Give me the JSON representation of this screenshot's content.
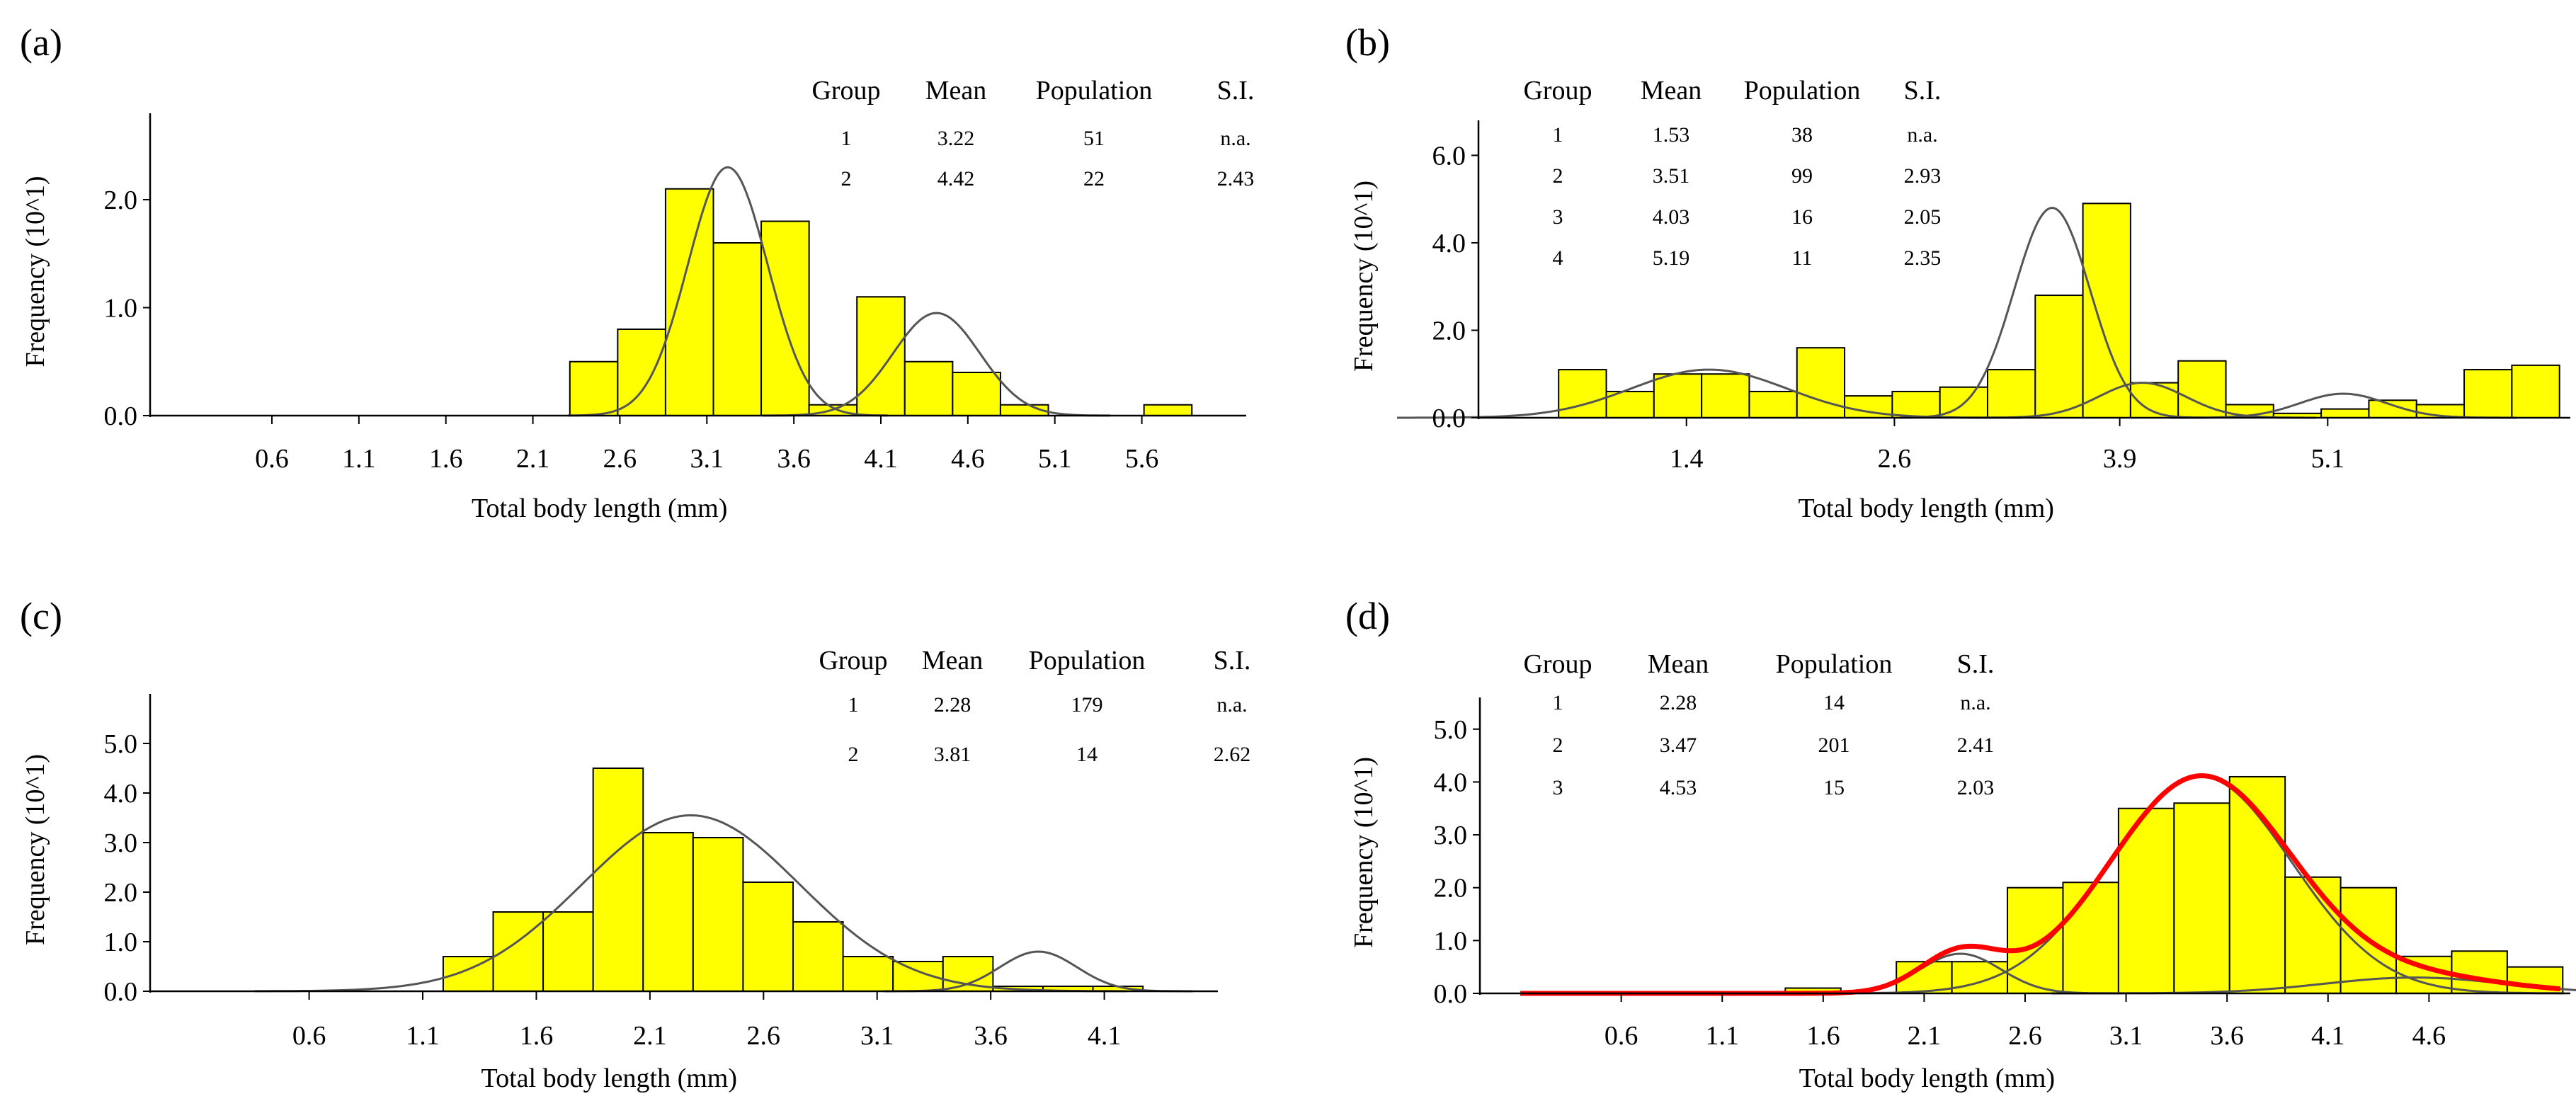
{
  "chart_data": [
    {
      "id": "a",
      "type": "bar",
      "panel_label": "(a)",
      "xlabel": "Total body length (mm)",
      "ylabel": "Frequency (10^1)",
      "xlim": [
        -0.1,
        6.2
      ],
      "ylim": [
        0,
        2.8
      ],
      "xticks": [
        "0.6",
        "1.1",
        "1.6",
        "2.1",
        "2.6",
        "3.1",
        "3.6",
        "4.1",
        "4.6",
        "5.1",
        "5.6"
      ],
      "yticks": [
        "0.0",
        "1.0",
        "2.0"
      ],
      "bin_width": 0.275,
      "bins": [
        {
          "x": 2.45,
          "v": 0.5
        },
        {
          "x": 2.725,
          "v": 0.8
        },
        {
          "x": 3.0,
          "v": 2.1
        },
        {
          "x": 3.275,
          "v": 1.6
        },
        {
          "x": 3.55,
          "v": 1.8
        },
        {
          "x": 3.825,
          "v": 0.1
        },
        {
          "x": 4.1,
          "v": 1.1
        },
        {
          "x": 4.375,
          "v": 0.5
        },
        {
          "x": 4.65,
          "v": 0.4
        },
        {
          "x": 4.925,
          "v": 0.1
        },
        {
          "x": 5.75,
          "v": 0.1
        }
      ],
      "fits": [
        {
          "mean": 3.22,
          "sd": 0.23,
          "peak": 2.3
        },
        {
          "mean": 4.42,
          "sd": 0.25,
          "peak": 0.95
        }
      ],
      "table": {
        "headers": [
          "Group",
          "Mean",
          "Population",
          "S.I."
        ],
        "rows": [
          [
            "1",
            "3.22",
            "51",
            "n.a."
          ],
          [
            "2",
            "4.42",
            "22",
            "2.43"
          ]
        ]
      }
    },
    {
      "id": "b",
      "type": "bar",
      "panel_label": "(b)",
      "xlabel": "Total body length (mm)",
      "ylabel": "Frequency (10^1)",
      "xlim": [
        0.2,
        6.5
      ],
      "ylim": [
        0,
        6.8
      ],
      "xticks": [
        "1.4",
        "2.6",
        "3.9",
        "5.1"
      ],
      "yticks": [
        "0.0",
        "2.0",
        "4.0",
        "6.0"
      ],
      "bin_width": 0.275,
      "bins": [
        {
          "x": 0.8,
          "v": 1.1
        },
        {
          "x": 1.075,
          "v": 0.6
        },
        {
          "x": 1.35,
          "v": 1.0
        },
        {
          "x": 1.625,
          "v": 1.0
        },
        {
          "x": 1.9,
          "v": 0.6
        },
        {
          "x": 2.175,
          "v": 1.6
        },
        {
          "x": 2.45,
          "v": 0.5
        },
        {
          "x": 2.725,
          "v": 0.6
        },
        {
          "x": 3.0,
          "v": 0.7
        },
        {
          "x": 3.275,
          "v": 1.1
        },
        {
          "x": 3.55,
          "v": 2.8
        },
        {
          "x": 3.825,
          "v": 4.9
        },
        {
          "x": 4.1,
          "v": 0.8
        },
        {
          "x": 4.375,
          "v": 1.3
        },
        {
          "x": 4.65,
          "v": 0.3
        },
        {
          "x": 4.925,
          "v": 0.1
        },
        {
          "x": 5.2,
          "v": 0.2
        },
        {
          "x": 5.475,
          "v": 0.4
        },
        {
          "x": 5.75,
          "v": 0.3
        },
        {
          "x": 6.025,
          "v": 1.1
        },
        {
          "x": 6.3,
          "v": 1.2
        }
      ],
      "fits": [
        {
          "mean": 1.53,
          "sd": 0.45,
          "peak": 1.1
        },
        {
          "mean": 3.51,
          "sd": 0.22,
          "peak": 4.8
        },
        {
          "mean": 4.03,
          "sd": 0.25,
          "peak": 0.8
        },
        {
          "mean": 5.19,
          "sd": 0.25,
          "peak": 0.55
        }
      ],
      "table": {
        "headers": [
          "Group",
          "Mean",
          "Population",
          "S.I."
        ],
        "rows": [
          [
            "1",
            "1.53",
            "38",
            "n.a."
          ],
          [
            "2",
            "3.51",
            "99",
            "2.93"
          ],
          [
            "3",
            "4.03",
            "16",
            "2.05"
          ],
          [
            "4",
            "5.19",
            "11",
            "2.35"
          ]
        ]
      }
    },
    {
      "id": "c",
      "type": "bar",
      "panel_label": "(c)",
      "xlabel": "Total body length (mm)",
      "ylabel": "Frequency (10^1)",
      "xlim": [
        -0.1,
        4.6
      ],
      "ylim": [
        0,
        6.0
      ],
      "xticks": [
        "0.6",
        "1.1",
        "1.6",
        "2.1",
        "2.6",
        "3.1",
        "3.6",
        "4.1"
      ],
      "yticks": [
        "0.0",
        "1.0",
        "2.0",
        "3.0",
        "4.0",
        "5.0"
      ],
      "bin_width": 0.22,
      "bins": [
        {
          "x": 1.3,
          "v": 0.7
        },
        {
          "x": 1.52,
          "v": 1.6
        },
        {
          "x": 1.74,
          "v": 1.6
        },
        {
          "x": 1.96,
          "v": 4.5
        },
        {
          "x": 2.18,
          "v": 3.2
        },
        {
          "x": 2.4,
          "v": 3.1
        },
        {
          "x": 2.62,
          "v": 2.2
        },
        {
          "x": 2.84,
          "v": 1.4
        },
        {
          "x": 3.06,
          "v": 0.7
        },
        {
          "x": 3.28,
          "v": 0.6
        },
        {
          "x": 3.5,
          "v": 0.7
        },
        {
          "x": 3.72,
          "v": 0.1
        },
        {
          "x": 3.94,
          "v": 0.1
        },
        {
          "x": 4.16,
          "v": 0.1
        }
      ],
      "fits": [
        {
          "mean": 2.28,
          "sd": 0.48,
          "peak": 3.55
        },
        {
          "mean": 3.81,
          "sd": 0.17,
          "peak": 0.8
        }
      ],
      "table": {
        "headers": [
          "Group",
          "Mean",
          "Population",
          "S.I."
        ],
        "rows": [
          [
            "1",
            "2.28",
            "179",
            "n.a."
          ],
          [
            "2",
            "3.81",
            "14",
            "2.62"
          ]
        ]
      }
    },
    {
      "id": "d",
      "type": "bar",
      "panel_label": "(d)",
      "xlabel": "Total body length (mm)",
      "ylabel": "Frequency (10^1)",
      "xlim": [
        -0.1,
        5.3
      ],
      "ylim": [
        0,
        5.6
      ],
      "xticks": [
        "0.6",
        "1.1",
        "1.6",
        "2.1",
        "2.6",
        "3.1",
        "3.6",
        "4.1",
        "4.6"
      ],
      "yticks": [
        "0.0",
        "1.0",
        "2.0",
        "3.0",
        "4.0",
        "5.0"
      ],
      "bin_width": 0.275,
      "bins": [
        {
          "x": 1.55,
          "v": 0.1
        },
        {
          "x": 2.1,
          "v": 0.6
        },
        {
          "x": 2.375,
          "v": 0.6
        },
        {
          "x": 2.65,
          "v": 2.0
        },
        {
          "x": 2.925,
          "v": 2.1
        },
        {
          "x": 3.2,
          "v": 3.5
        },
        {
          "x": 3.475,
          "v": 3.6
        },
        {
          "x": 3.75,
          "v": 4.1
        },
        {
          "x": 4.025,
          "v": 2.2
        },
        {
          "x": 4.3,
          "v": 2.0
        },
        {
          "x": 4.575,
          "v": 0.7
        },
        {
          "x": 4.85,
          "v": 0.8
        },
        {
          "x": 5.125,
          "v": 0.5
        }
      ],
      "fits": [
        {
          "mean": 2.28,
          "sd": 0.2,
          "peak": 0.75
        },
        {
          "mean": 3.47,
          "sd": 0.45,
          "peak": 4.1
        },
        {
          "mean": 4.53,
          "sd": 0.45,
          "peak": 0.3
        }
      ],
      "total_fit": true,
      "table": {
        "headers": [
          "Group",
          "Mean",
          "Population",
          "S.I."
        ],
        "rows": [
          [
            "1",
            "2.28",
            "14",
            "n.a."
          ],
          [
            "2",
            "3.47",
            "201",
            "2.41"
          ],
          [
            "3",
            "4.53",
            "15",
            "2.03"
          ]
        ]
      }
    }
  ]
}
